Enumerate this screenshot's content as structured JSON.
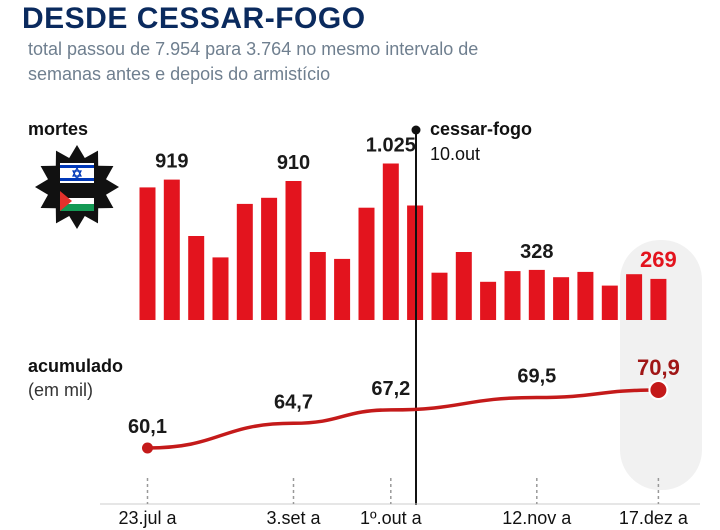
{
  "title": "DESDE CESSAR-FOGO",
  "subtitle_line1": "total passou de 7.954 para 3.764 no mesmo intervalo de",
  "subtitle_line2": "semanas antes e depois do armistício",
  "colors": {
    "title": "#0a2a5e",
    "bar": "#e3141e",
    "line": "#c41a1a",
    "highlight_bg": "#f1f1f1"
  },
  "chart_data": [
    {
      "type": "bar",
      "title": "mortes",
      "x": [
        "23.jul a",
        "",
        "",
        "",
        "",
        "",
        "3.set a",
        "",
        "",
        "",
        "1º.out a",
        "",
        "",
        "",
        "",
        "",
        "12.nov a",
        "",
        "",
        "",
        "",
        "17.dez a"
      ],
      "values": [
        868,
        919,
        550,
        410,
        760,
        800,
        910,
        445,
        400,
        735,
        1025,
        750,
        310,
        445,
        250,
        320,
        328,
        280,
        315,
        225,
        300,
        269
      ],
      "labels": [
        {
          "index": 1,
          "text": "919"
        },
        {
          "index": 6,
          "text": "910"
        },
        {
          "index": 10,
          "text": "1.025"
        },
        {
          "index": 16,
          "text": "328"
        },
        {
          "index": 21,
          "text": "269"
        }
      ],
      "ylim": [
        0,
        1100
      ]
    },
    {
      "type": "line",
      "title": "acumulado",
      "ylabel": "(em mil)",
      "points": [
        {
          "week": 0,
          "value": 60.1,
          "label": "60,1"
        },
        {
          "week": 6,
          "value": 64.7,
          "label": "64,7"
        },
        {
          "week": 10,
          "value": 67.2,
          "label": "67,2"
        },
        {
          "week": 16,
          "value": 69.5,
          "label": "69,5"
        },
        {
          "week": 21,
          "value": 70.9,
          "label": "70,9"
        }
      ],
      "ylim": [
        58,
        72
      ]
    }
  ],
  "annotation": {
    "label": "cessar-fogo",
    "date": "10.out"
  },
  "legend": {
    "flag1": "israel-flag-icon",
    "flag2": "palestine-flag-icon"
  }
}
